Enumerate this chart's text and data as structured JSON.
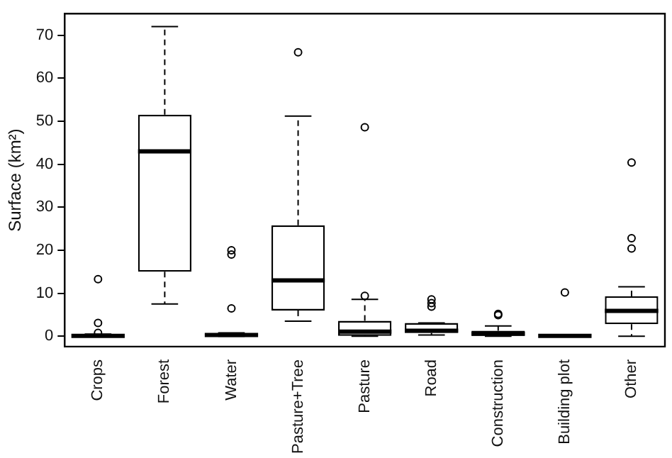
{
  "chart_data": {
    "type": "box",
    "ylabel": "Surface (km²)",
    "categories": [
      "Crops",
      "Forest",
      "Water",
      "Pasture+Tree",
      "Pasture",
      "Road",
      "Construction",
      "Building plot",
      "Other"
    ],
    "boxes": [
      {
        "low": 0,
        "q1": 0,
        "median": 0.1,
        "q3": 0.3,
        "high": 0.5,
        "outliers": [
          13.3,
          3.1,
          0.8
        ]
      },
      {
        "low": 7.5,
        "q1": 15,
        "median": 43,
        "q3": 51.5,
        "high": 72
      },
      {
        "low": 0,
        "q1": 0,
        "median": 0.3,
        "q3": 0.6,
        "high": 0.8,
        "outliers": [
          6.5,
          19,
          20
        ]
      },
      {
        "low": 3.5,
        "q1": 6,
        "median": 13,
        "q3": 25.8,
        "high": 51.2,
        "outliers": [
          66
        ]
      },
      {
        "low": 0,
        "q1": 0.1,
        "median": 1.1,
        "q3": 3.6,
        "high": 8.6,
        "outliers": [
          48.6,
          9.4
        ]
      },
      {
        "low": 0.3,
        "q1": 0.8,
        "median": 1.3,
        "q3": 3.1,
        "high": 3.1,
        "outliers": [
          8.6,
          7.7,
          6.9
        ]
      },
      {
        "low": 0,
        "q1": 0.1,
        "median": 0.6,
        "q3": 1.3,
        "high": 2.4,
        "outliers": [
          4.9,
          5.2
        ]
      },
      {
        "low": 0,
        "q1": 0,
        "median": 0.1,
        "q3": 0.3,
        "high": 0.3,
        "outliers": [
          10.2
        ]
      },
      {
        "low": 0,
        "q1": 2.8,
        "median": 5.9,
        "q3": 9.3,
        "high": 11.5,
        "outliers": [
          40.4,
          22.8,
          20.4
        ]
      }
    ],
    "color": "#000000",
    "ylim": [
      -2.4,
      75
    ],
    "yticks": [
      0,
      10,
      20,
      30,
      40,
      50,
      60,
      70
    ],
    "grid": false,
    "legend": false,
    "line_style": "dashed",
    "marker": "circle"
  }
}
